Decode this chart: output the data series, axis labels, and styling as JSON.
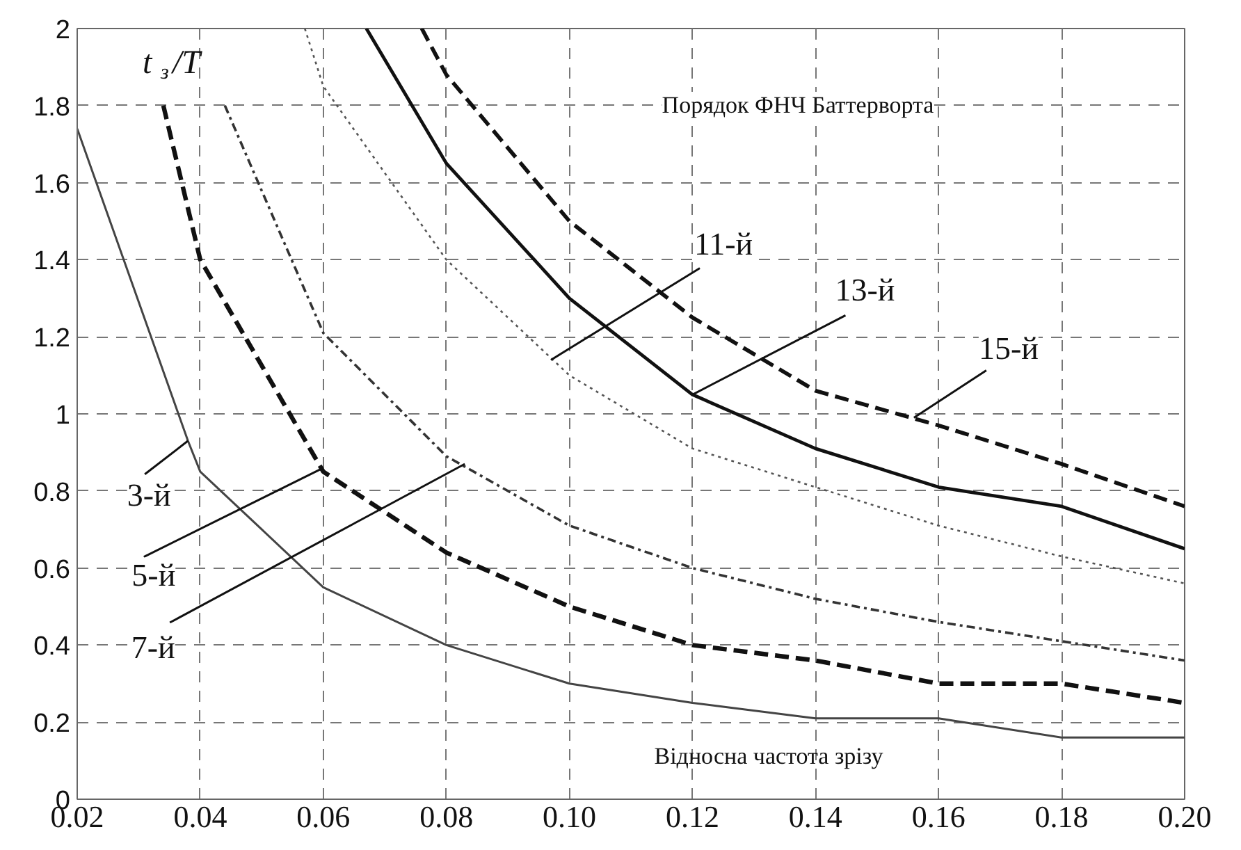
{
  "chart_data": {
    "type": "line",
    "annotations": [
      "Порядок ФНЧ Баттерворта",
      {
        "text": "3-й",
        "x": 0.038,
        "y": 0.93
      },
      {
        "text": "5-й",
        "x": 0.06,
        "y": 0.86
      },
      {
        "text": "7-й",
        "x": 0.083,
        "y": 0.87
      },
      {
        "text": "11-й",
        "x": 0.097,
        "y": 1.14
      },
      {
        "text": "13-й",
        "x": 0.12,
        "y": 1.05
      },
      {
        "text": "15-й",
        "x": 0.156,
        "y": 0.99
      }
    ],
    "xlabel": "Відносна частота зрізу",
    "ylabel": "t$_{з}$/T",
    "series": [
      {
        "color": "#444444",
        "line_style": "solid",
        "x": [
          0.02,
          0.03,
          0.038,
          0.04,
          0.05,
          0.06,
          0.08,
          0.1,
          0.12,
          0.14,
          0.16,
          0.18,
          0.2
        ],
        "values": [
          1.74,
          1.29,
          0.93,
          0.85,
          0.7,
          0.55,
          0.4,
          0.3,
          0.25,
          0.21,
          0.21,
          0.16,
          0.16
        ]
      },
      {
        "color": "#111111",
        "line_style": "dashed",
        "x": [
          0.034,
          0.04,
          0.06,
          0.08,
          0.1,
          0.12,
          0.14,
          0.16,
          0.18,
          0.2
        ],
        "values": [
          1.8,
          1.4,
          0.85,
          0.64,
          0.5,
          0.4,
          0.36,
          0.3,
          0.3,
          0.25
        ]
      },
      {
        "color": "#333333",
        "line_style": "dashdot",
        "x": [
          0.044,
          0.06,
          0.08,
          0.1,
          0.12,
          0.14,
          0.16,
          0.18,
          0.2
        ],
        "values": [
          1.8,
          1.21,
          0.89,
          0.71,
          0.6,
          0.52,
          0.46,
          0.41,
          0.36
        ]
      },
      {
        "color": "#555555",
        "line_style": "dotted",
        "x": [
          0.057,
          0.06,
          0.08,
          0.1,
          0.12,
          0.14,
          0.16,
          0.18,
          0.2
        ],
        "values": [
          2.0,
          1.85,
          1.4,
          1.1,
          0.91,
          0.81,
          0.71,
          0.63,
          0.56
        ]
      },
      {
        "color": "#111111",
        "line_style": "solid",
        "x": [
          0.067,
          0.08,
          0.1,
          0.12,
          0.14,
          0.16,
          0.18,
          0.2
        ],
        "values": [
          2.0,
          1.65,
          1.3,
          1.05,
          0.91,
          0.81,
          0.76,
          0.65
        ]
      },
      {
        "color": "#111111",
        "line_style": "dashed",
        "x": [
          0.076,
          0.08,
          0.1,
          0.12,
          0.14,
          0.16,
          0.18,
          0.2
        ],
        "values": [
          2.0,
          1.88,
          1.5,
          1.25,
          1.06,
          0.97,
          0.87,
          0.76
        ]
      }
    ],
    "xlim": [
      0.02,
      0.2
    ],
    "ylim": [
      0,
      2
    ],
    "xticks": [
      {
        "value": 0.02,
        "label": "0.02"
      },
      {
        "value": 0.04,
        "label": "0.04"
      },
      {
        "value": 0.06,
        "label": "0.06"
      },
      {
        "value": 0.08,
        "label": "0.08"
      },
      {
        "value": 0.1,
        "label": "0.10"
      },
      {
        "value": 0.12,
        "label": "0.12"
      },
      {
        "value": 0.14,
        "label": "0.14"
      },
      {
        "value": 0.16,
        "label": "0.16"
      },
      {
        "value": 0.18,
        "label": "0.18"
      },
      {
        "value": 0.2,
        "label": "0.20"
      }
    ],
    "yticks": [
      0,
      0.2,
      0.4,
      0.6,
      0.8,
      1,
      1.2,
      1.4,
      1.6,
      1.8,
      2
    ],
    "grid": true,
    "marker": "none"
  }
}
